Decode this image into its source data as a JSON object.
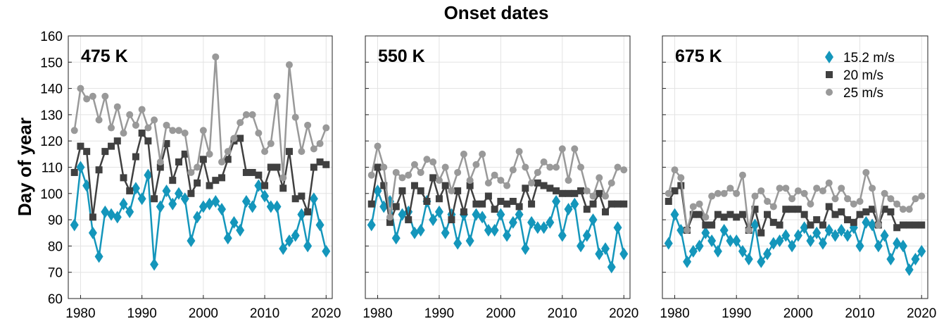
{
  "chart_data": [
    {
      "type": "line",
      "title": "Onset dates",
      "y_label": "Day of year",
      "annotation": "475 K",
      "x": [
        1979,
        1980,
        1981,
        1982,
        1983,
        1984,
        1985,
        1986,
        1987,
        1988,
        1989,
        1990,
        1991,
        1992,
        1993,
        1994,
        1995,
        1996,
        1997,
        1998,
        1999,
        2000,
        2001,
        2002,
        2003,
        2004,
        2005,
        2006,
        2007,
        2008,
        2009,
        2010,
        2011,
        2012,
        2013,
        2014,
        2015,
        2016,
        2017,
        2018,
        2019,
        2020
      ],
      "xlim": [
        1978,
        2021
      ],
      "xticks": [
        1980,
        1990,
        2000,
        2010,
        2020
      ],
      "ylim": [
        60,
        160
      ],
      "yticks": [
        60,
        70,
        80,
        90,
        100,
        110,
        120,
        130,
        140,
        150,
        160
      ],
      "show_ytick_labels": true,
      "grid": true,
      "series": [
        {
          "color": "#1496bb",
          "marker": "diamond",
          "values": [
            88,
            110,
            103,
            85,
            76,
            93,
            92,
            91,
            96,
            93,
            102,
            98,
            107,
            73,
            95,
            101,
            96,
            100,
            98,
            82,
            91,
            95,
            96,
            97,
            94,
            83,
            89,
            86,
            97,
            95,
            103,
            99,
            95,
            95,
            79,
            82,
            84,
            92,
            80,
            98,
            88,
            78
          ]
        },
        {
          "color": "#404040",
          "marker": "square",
          "values": [
            108,
            118,
            116,
            91,
            109,
            116,
            118,
            120,
            106,
            101,
            114,
            123,
            120,
            98,
            110,
            119,
            105,
            112,
            115,
            100,
            104,
            113,
            103,
            105,
            106,
            113,
            120,
            121,
            108,
            108,
            107,
            103,
            110,
            110,
            102,
            116,
            98,
            99,
            93,
            110,
            112,
            111
          ]
        },
        {
          "color": "#999999",
          "marker": "circle",
          "values": [
            124,
            140,
            136,
            137,
            128,
            137,
            125,
            133,
            123,
            130,
            126,
            132,
            125,
            128,
            112,
            126,
            124,
            124,
            123,
            108,
            110,
            124,
            115,
            152,
            112,
            116,
            121,
            127,
            130,
            130,
            123,
            116,
            119,
            137,
            106,
            149,
            129,
            116,
            126,
            117,
            119,
            125
          ]
        }
      ]
    },
    {
      "type": "line",
      "annotation": "550 K",
      "x": [
        1979,
        1980,
        1981,
        1982,
        1983,
        1984,
        1985,
        1986,
        1987,
        1988,
        1989,
        1990,
        1991,
        1992,
        1993,
        1994,
        1995,
        1996,
        1997,
        1998,
        1999,
        2000,
        2001,
        2002,
        2003,
        2004,
        2005,
        2006,
        2007,
        2008,
        2009,
        2010,
        2011,
        2012,
        2013,
        2014,
        2015,
        2016,
        2017,
        2018,
        2019,
        2020
      ],
      "xlim": [
        1978,
        2021
      ],
      "xticks": [
        1980,
        1990,
        2000,
        2010,
        2020
      ],
      "ylim": [
        60,
        160
      ],
      "yticks": [
        60,
        70,
        80,
        90,
        100,
        110,
        120,
        130,
        140,
        150,
        160
      ],
      "show_ytick_labels": false,
      "grid": true,
      "series": [
        {
          "color": "#1496bb",
          "marker": "diamond",
          "values": [
            88,
            101,
            95,
            97,
            83,
            92,
            93,
            85,
            86,
            97,
            90,
            93,
            85,
            92,
            81,
            92,
            82,
            92,
            91,
            86,
            86,
            92,
            84,
            89,
            92,
            79,
            89,
            87,
            87,
            89,
            97,
            84,
            94,
            96,
            80,
            84,
            90,
            77,
            79,
            72,
            87,
            77
          ]
        },
        {
          "color": "#404040",
          "marker": "square",
          "values": [
            96,
            110,
            103,
            89,
            95,
            101,
            90,
            103,
            101,
            97,
            106,
            98,
            103,
            90,
            101,
            93,
            103,
            96,
            96,
            99,
            94,
            97,
            96,
            97,
            95,
            102,
            96,
            104,
            103,
            102,
            101,
            100,
            100,
            100,
            101,
            94,
            96,
            100,
            93,
            96,
            96,
            96
          ]
        },
        {
          "color": "#999999",
          "marker": "circle",
          "values": [
            107,
            118,
            110,
            91,
            108,
            106,
            107,
            111,
            108,
            113,
            112,
            105,
            110,
            101,
            108,
            115,
            105,
            111,
            115,
            104,
            107,
            105,
            103,
            109,
            116,
            110,
            104,
            108,
            112,
            110,
            110,
            117,
            105,
            117,
            110,
            101,
            99,
            106,
            99,
            104,
            110,
            109
          ]
        }
      ]
    },
    {
      "type": "line",
      "annotation": "675 K",
      "legend": "upper right",
      "x": [
        1979,
        1980,
        1981,
        1982,
        1983,
        1984,
        1985,
        1986,
        1987,
        1988,
        1989,
        1990,
        1991,
        1992,
        1993,
        1994,
        1995,
        1996,
        1997,
        1998,
        1999,
        2000,
        2001,
        2002,
        2003,
        2004,
        2005,
        2006,
        2007,
        2008,
        2009,
        2010,
        2011,
        2012,
        2013,
        2014,
        2015,
        2016,
        2017,
        2018,
        2019,
        2020
      ],
      "xlim": [
        1978,
        2021
      ],
      "xticks": [
        1980,
        1990,
        2000,
        2010,
        2020
      ],
      "ylim": [
        60,
        160
      ],
      "yticks": [
        60,
        70,
        80,
        90,
        100,
        110,
        120,
        130,
        140,
        150,
        160
      ],
      "show_ytick_labels": false,
      "grid": true,
      "series": [
        {
          "name": "15.2 m/s",
          "color": "#1496bb",
          "marker": "diamond",
          "values": [
            81,
            92,
            86,
            74,
            78,
            80,
            85,
            82,
            78,
            86,
            82,
            82,
            78,
            75,
            88,
            74,
            77,
            81,
            82,
            84,
            80,
            84,
            87,
            82,
            85,
            81,
            86,
            84,
            86,
            84,
            87,
            80,
            89,
            88,
            80,
            84,
            75,
            81,
            80,
            71,
            75,
            78
          ]
        },
        {
          "name": "20 m/s",
          "color": "#404040",
          "marker": "square",
          "values": [
            97,
            101,
            103,
            86,
            92,
            92,
            88,
            88,
            92,
            91,
            92,
            91,
            92,
            86,
            94,
            85,
            92,
            89,
            88,
            94,
            94,
            94,
            92,
            88,
            90,
            88,
            95,
            92,
            93,
            90,
            89,
            92,
            93,
            94,
            88,
            94,
            93,
            87,
            88,
            88,
            88,
            88
          ]
        },
        {
          "name": "25 m/s",
          "color": "#999999",
          "marker": "circle",
          "values": [
            100,
            109,
            106,
            86,
            95,
            96,
            91,
            99,
            100,
            100,
            102,
            100,
            107,
            86,
            99,
            101,
            97,
            95,
            102,
            102,
            98,
            101,
            100,
            96,
            102,
            101,
            104,
            98,
            102,
            98,
            96,
            97,
            108,
            102,
            88,
            100,
            98,
            96,
            94,
            94,
            98,
            99
          ]
        }
      ]
    }
  ]
}
